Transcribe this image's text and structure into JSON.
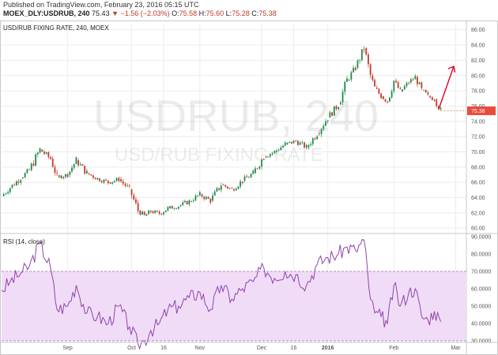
{
  "header": {
    "published": "Published on TradingView.com, February 23, 2016 05:15 UTC",
    "symbol": "MOEX_DLY:USDRUB, 240",
    "last": "75.43",
    "change": "▼ −1.56 (−2.03%)",
    "o_label": "O:",
    "o_value": "75.58",
    "h_label": "H:",
    "h_value": "75.60",
    "l_label": "L:",
    "l_value": "75.28",
    "c_label": "C:",
    "c_value": "75.38"
  },
  "colors": {
    "up": "#1e8a4c",
    "down": "#c0392b",
    "rsi_line": "#8e44ad",
    "rsi_band": "#f1dcf7",
    "arrow": "#e3001b",
    "last_price_tag": "#e74c3c"
  },
  "chart_data": [
    {
      "type": "candlestick",
      "title": "USD/RUB FIXING RATE, 240, MOEX",
      "watermark": "USDRUB, 240",
      "watermark_sub": "USD/RUB FIXING RATE",
      "last_price_label": "75.38",
      "ylim": [
        59.5,
        86.8
      ],
      "yticks": [
        "60.00",
        "62.00",
        "64.00",
        "66.00",
        "68.00",
        "70.00",
        "72.00",
        "74.00",
        "76.00",
        "78.00",
        "80.00",
        "82.00",
        "84.00",
        "86.00"
      ],
      "x_tick_labels": [
        "Sep",
        "Oct",
        "16",
        "Nov",
        "Dec",
        "16",
        "2016",
        "Feb",
        "Mar"
      ],
      "x_tick_dates": [
        "2015-09-01",
        "2015-10-01",
        "2015-10-16",
        "2015-11-02",
        "2015-12-01",
        "2015-12-16",
        "2016-01-01",
        "2016-02-01",
        "2016-03-01"
      ],
      "x_range": [
        "2015-08-01",
        "2016-03-06"
      ],
      "x": [
        "2015-08-01",
        "2015-08-05",
        "2015-08-10",
        "2015-08-14",
        "2015-08-19",
        "2015-08-24",
        "2015-08-27",
        "2015-09-01",
        "2015-09-05",
        "2015-09-10",
        "2015-09-15",
        "2015-09-20",
        "2015-09-25",
        "2015-09-30",
        "2015-10-04",
        "2015-10-07",
        "2015-10-10",
        "2015-10-14",
        "2015-10-18",
        "2015-10-23",
        "2015-10-28",
        "2015-11-02",
        "2015-11-07",
        "2015-11-12",
        "2015-11-17",
        "2015-11-22",
        "2015-11-27",
        "2015-12-02",
        "2015-12-07",
        "2015-12-12",
        "2015-12-17",
        "2015-12-22",
        "2015-12-27",
        "2016-01-01",
        "2016-01-06",
        "2016-01-10",
        "2016-01-14",
        "2016-01-18",
        "2016-01-21",
        "2016-01-23",
        "2016-01-26",
        "2016-01-29",
        "2016-02-01",
        "2016-02-04",
        "2016-02-08",
        "2016-02-11",
        "2016-02-14",
        "2016-02-17",
        "2016-02-20",
        "2016-02-23"
      ],
      "close": [
        64.2,
        65.3,
        66.6,
        67.6,
        70.3,
        69.1,
        66.7,
        67.0,
        68.9,
        67.2,
        66.5,
        66.0,
        66.4,
        65.1,
        62.3,
        61.6,
        62.2,
        61.9,
        62.6,
        62.9,
        63.5,
        64.4,
        63.6,
        65.7,
        65.1,
        66.2,
        67.2,
        69.4,
        70.0,
        71.0,
        71.4,
        70.6,
        72.4,
        74.5,
        76.2,
        79.4,
        81.0,
        83.6,
        80.0,
        78.4,
        77.3,
        76.6,
        79.3,
        77.9,
        79.1,
        79.8,
        78.1,
        77.3,
        76.9,
        75.4
      ],
      "rsi": {
        "label": "RSI (14, close)",
        "ylim": [
          30,
          90
        ],
        "overbought": 70,
        "oversold": 30,
        "yticks": [
          "30.0000",
          "40.0000",
          "50.0000",
          "60.0000",
          "70.0000",
          "80.0000",
          "90.0000"
        ],
        "values": [
          59,
          64,
          69,
          73,
          86,
          72,
          48,
          50,
          62,
          46,
          44,
          40,
          50,
          38,
          28,
          30,
          36,
          40,
          48,
          50,
          55,
          58,
          48,
          62,
          54,
          60,
          64,
          72,
          66,
          70,
          68,
          62,
          74,
          78,
          80,
          84,
          82,
          88,
          54,
          46,
          44,
          40,
          62,
          50,
          58,
          60,
          44,
          42,
          47,
          41
        ]
      }
    }
  ]
}
